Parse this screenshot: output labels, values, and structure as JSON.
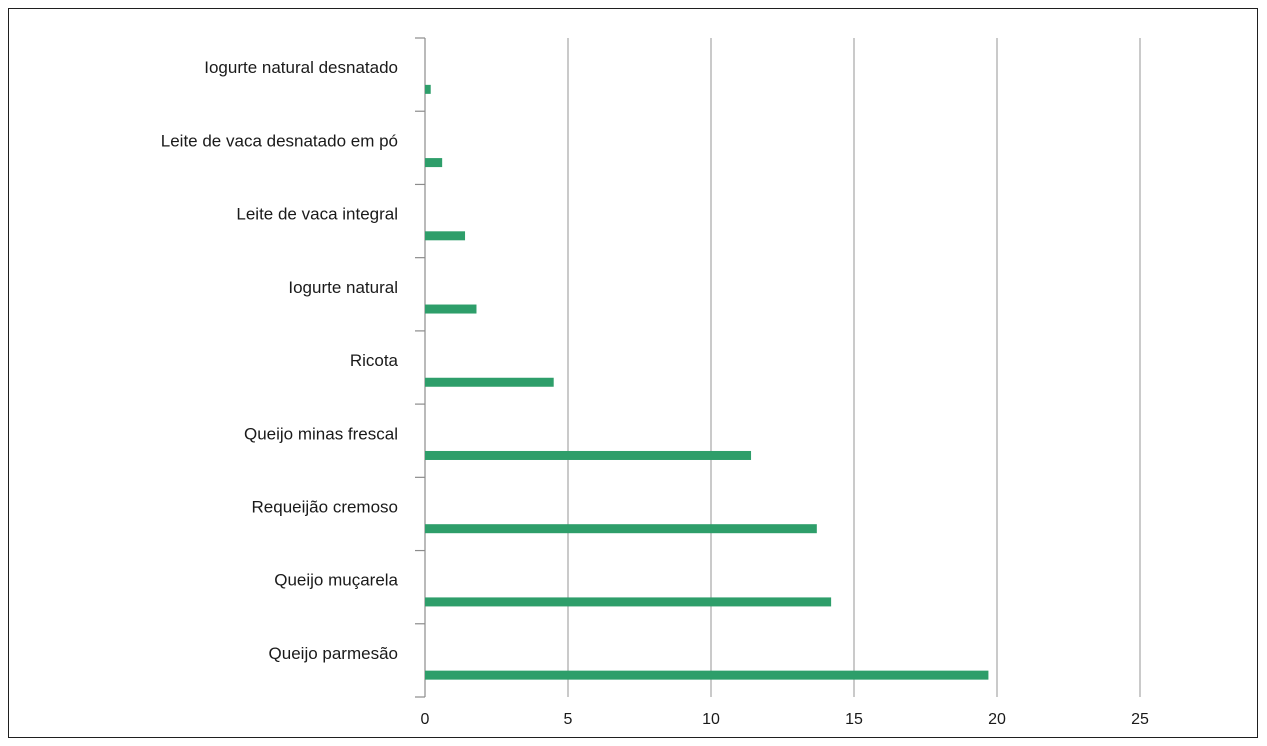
{
  "chart_data": {
    "type": "bar",
    "orientation": "horizontal",
    "title": "",
    "xlabel": "",
    "ylabel": "",
    "categories": [
      "Iogurte natural desnatado",
      "Leite de vaca desnatado em pó",
      "Leite de vaca integral",
      "Iogurte natural",
      "Ricota",
      "Queijo minas frescal",
      "Requeijão cremoso",
      "Queijo muçarela",
      "Queijo parmesão"
    ],
    "values": [
      0.2,
      0.6,
      1.4,
      1.8,
      4.5,
      11.4,
      13.7,
      14.2,
      19.7
    ],
    "xlim": [
      0,
      25
    ],
    "xticks": [
      "0",
      "5",
      "10",
      "15",
      "20",
      "25"
    ],
    "grid": "vertical",
    "legend": "none",
    "bar_color": "#2e9e6a",
    "grid_color": "#a6a6a6",
    "axis_color": "#8c8c8c"
  }
}
